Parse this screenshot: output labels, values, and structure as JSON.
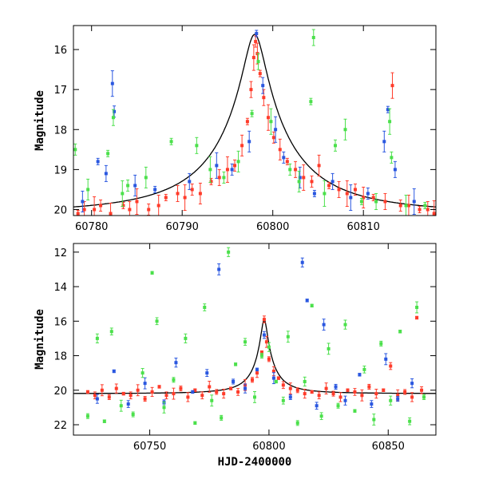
{
  "chart_data": [
    {
      "type": "scatter",
      "title": "",
      "xlabel": "",
      "ylabel": "Magnitude",
      "xlim": [
        60778,
        60818
      ],
      "ylim": [
        20.15,
        15.4
      ],
      "y_inverted": true,
      "xticks": [
        60780,
        60790,
        60800,
        60810
      ],
      "yticks": [
        16,
        17,
        18,
        19,
        20
      ],
      "model_curve": {
        "peak_x": 60798.0,
        "peak_mag": 15.62,
        "baseline_mag": 20.12,
        "timescale_days": 8.5,
        "color": "#000000"
      },
      "series": [
        {
          "color": "#ff3b2a",
          "points": [
            [
              60778.5,
              20.1
            ],
            [
              60779.2,
              20.0
            ],
            [
              60780.3,
              20.0
            ],
            [
              60781.0,
              19.9
            ],
            [
              60782.1,
              20.1
            ],
            [
              60783.5,
              19.9
            ],
            [
              60784.2,
              20.0
            ],
            [
              60785.0,
              19.8
            ],
            [
              60786.3,
              20.0
            ],
            [
              60787.4,
              19.9
            ],
            [
              60788.2,
              19.7
            ],
            [
              60789.5,
              19.6
            ],
            [
              60790.3,
              19.7
            ],
            [
              60791.1,
              19.5
            ],
            [
              60792.0,
              19.6
            ],
            [
              60793.2,
              19.3
            ],
            [
              60794.1,
              19.2
            ],
            [
              60795.0,
              19.0
            ],
            [
              60795.8,
              18.9
            ],
            [
              60796.6,
              18.4
            ],
            [
              60797.2,
              17.8
            ],
            [
              60797.6,
              17.0
            ],
            [
              60797.9,
              16.2
            ],
            [
              60798.1,
              15.8
            ],
            [
              60798.3,
              16.1
            ],
            [
              60798.6,
              16.6
            ],
            [
              60799.0,
              17.2
            ],
            [
              60799.5,
              17.7
            ],
            [
              60800.1,
              18.2
            ],
            [
              60800.8,
              18.5
            ],
            [
              60801.6,
              18.8
            ],
            [
              60802.5,
              19.0
            ],
            [
              60803.4,
              19.2
            ],
            [
              60804.3,
              19.3
            ],
            [
              60805.1,
              18.9
            ],
            [
              60806.2,
              19.4
            ],
            [
              60807.3,
              19.5
            ],
            [
              60808.2,
              19.6
            ],
            [
              60809.1,
              19.5
            ],
            [
              60810.0,
              19.7
            ],
            [
              60811.1,
              19.7
            ],
            [
              60812.4,
              19.8
            ],
            [
              60813.2,
              16.9
            ],
            [
              60814.1,
              19.9
            ],
            [
              60815.0,
              19.9
            ],
            [
              60816.2,
              20.0
            ],
            [
              60817.1,
              20.0
            ],
            [
              60817.8,
              20.1
            ]
          ]
        },
        {
          "color": "#2a57e0",
          "points": [
            [
              60779.0,
              19.8
            ],
            [
              60780.7,
              18.8
            ],
            [
              60781.6,
              19.1
            ],
            [
              60782.3,
              16.85
            ],
            [
              60782.5,
              17.55
            ],
            [
              60784.8,
              19.4
            ],
            [
              60787.0,
              19.5
            ],
            [
              60790.8,
              19.3
            ],
            [
              60793.8,
              18.9
            ],
            [
              60795.5,
              19.0
            ],
            [
              60797.4,
              18.3
            ],
            [
              60798.2,
              15.6
            ],
            [
              60798.9,
              16.9
            ],
            [
              60800.3,
              18.0
            ],
            [
              60801.2,
              18.7
            ],
            [
              60803.0,
              19.2
            ],
            [
              60804.6,
              19.6
            ],
            [
              60806.6,
              19.3
            ],
            [
              60808.6,
              19.7
            ],
            [
              60810.5,
              19.6
            ],
            [
              60812.3,
              18.3
            ],
            [
              60812.7,
              17.5
            ],
            [
              60813.5,
              19.0
            ],
            [
              60815.6,
              19.8
            ]
          ]
        },
        {
          "color": "#4be04b",
          "points": [
            [
              60778.2,
              18.5
            ],
            [
              60779.6,
              19.5
            ],
            [
              60781.8,
              18.6
            ],
            [
              60782.4,
              17.7
            ],
            [
              60783.4,
              19.6
            ],
            [
              60784.0,
              19.4
            ],
            [
              60786.0,
              19.2
            ],
            [
              60788.8,
              18.3
            ],
            [
              60791.6,
              18.4
            ],
            [
              60793.1,
              19.0
            ],
            [
              60794.6,
              19.2
            ],
            [
              60796.2,
              18.8
            ],
            [
              60797.7,
              17.6
            ],
            [
              60798.4,
              16.3
            ],
            [
              60799.8,
              17.8
            ],
            [
              60801.9,
              19.0
            ],
            [
              60802.9,
              19.3
            ],
            [
              60804.2,
              17.3
            ],
            [
              60804.5,
              15.7
            ],
            [
              60805.7,
              19.6
            ],
            [
              60806.9,
              18.4
            ],
            [
              60808.0,
              18.0
            ],
            [
              60809.8,
              19.8
            ],
            [
              60811.4,
              19.8
            ],
            [
              60812.9,
              17.8
            ],
            [
              60813.1,
              18.7
            ],
            [
              60814.7,
              19.9
            ],
            [
              60816.8,
              19.9
            ]
          ]
        }
      ]
    },
    {
      "type": "scatter",
      "title": "",
      "xlabel": "HJD-2400000",
      "ylabel": "Magnitude",
      "xlim": [
        60718,
        60870
      ],
      "ylim": [
        22.6,
        11.5
      ],
      "y_inverted": true,
      "xticks": [
        60750,
        60800,
        60850
      ],
      "yticks": [
        12,
        14,
        16,
        18,
        20,
        22
      ],
      "model_curve": {
        "peak_x": 60798.0,
        "peak_mag": 15.9,
        "baseline_mag": 20.2,
        "timescale_days": 9.0,
        "color": "#000000"
      },
      "series": [
        {
          "color": "#ff3b2a",
          "points": [
            [
              60724,
              20.1
            ],
            [
              60727,
              20.3
            ],
            [
              60730,
              20.0
            ],
            [
              60733,
              20.4
            ],
            [
              60736,
              19.9
            ],
            [
              60739,
              20.2
            ],
            [
              60742,
              20.3
            ],
            [
              60745,
              20.0
            ],
            [
              60748,
              20.5
            ],
            [
              60751,
              20.1
            ],
            [
              60754,
              19.8
            ],
            [
              60757,
              20.3
            ],
            [
              60760,
              20.2
            ],
            [
              60763,
              19.9
            ],
            [
              60766,
              20.4
            ],
            [
              60769,
              20.0
            ],
            [
              60772,
              20.3
            ],
            [
              60775,
              19.8
            ],
            [
              60778,
              20.1
            ],
            [
              60781,
              20.2
            ],
            [
              60784,
              19.9
            ],
            [
              60787,
              20.1
            ],
            [
              60790,
              19.7
            ],
            [
              60793,
              19.4
            ],
            [
              60795,
              19.0
            ],
            [
              60797,
              17.8
            ],
            [
              60798,
              15.9
            ],
            [
              60799,
              17.2
            ],
            [
              60800,
              18.2
            ],
            [
              60802,
              18.9
            ],
            [
              60804,
              19.3
            ],
            [
              60806,
              19.7
            ],
            [
              60809,
              19.9
            ],
            [
              60812,
              20.0
            ],
            [
              60815,
              20.2
            ],
            [
              60818,
              20.1
            ],
            [
              60821,
              20.3
            ],
            [
              60824,
              19.9
            ],
            [
              60827,
              20.2
            ],
            [
              60830,
              20.4
            ],
            [
              60833,
              20.0
            ],
            [
              60836,
              20.1
            ],
            [
              60839,
              20.3
            ],
            [
              60842,
              19.8
            ],
            [
              60845,
              20.2
            ],
            [
              60848,
              20.0
            ],
            [
              60851,
              18.6
            ],
            [
              60854,
              20.3
            ],
            [
              60857,
              20.1
            ],
            [
              60860,
              20.4
            ],
            [
              60862,
              15.8
            ],
            [
              60864,
              20.0
            ]
          ]
        },
        {
          "color": "#2a57e0",
          "points": [
            [
              60728,
              20.5
            ],
            [
              60735,
              18.9
            ],
            [
              60741,
              20.8
            ],
            [
              60748,
              19.6
            ],
            [
              60756,
              20.7
            ],
            [
              60761,
              18.4
            ],
            [
              60768,
              20.1
            ],
            [
              60774,
              19.0
            ],
            [
              60779,
              13.0
            ],
            [
              60785,
              19.5
            ],
            [
              60790,
              19.9
            ],
            [
              60795,
              18.8
            ],
            [
              60798,
              16.8
            ],
            [
              60802,
              19.3
            ],
            [
              60809,
              20.4
            ],
            [
              60814,
              12.6
            ],
            [
              60816,
              14.8
            ],
            [
              60820,
              20.9
            ],
            [
              60823,
              16.2
            ],
            [
              60828,
              19.8
            ],
            [
              60832,
              20.6
            ],
            [
              60838,
              19.1
            ],
            [
              60843,
              20.8
            ],
            [
              60849,
              18.2
            ],
            [
              60854,
              20.5
            ],
            [
              60860,
              19.6
            ]
          ]
        },
        {
          "color": "#4be04b",
          "points": [
            [
              60724,
              21.5
            ],
            [
              60728,
              17.0
            ],
            [
              60731,
              21.8
            ],
            [
              60734,
              16.6
            ],
            [
              60738,
              20.9
            ],
            [
              60743,
              21.4
            ],
            [
              60747,
              19.0
            ],
            [
              60751,
              13.2
            ],
            [
              60753,
              16.0
            ],
            [
              60756,
              21.0
            ],
            [
              60760,
              19.4
            ],
            [
              60765,
              17.0
            ],
            [
              60769,
              21.9
            ],
            [
              60773,
              15.2
            ],
            [
              60776,
              20.6
            ],
            [
              60780,
              21.6
            ],
            [
              60783,
              12.0
            ],
            [
              60786,
              18.5
            ],
            [
              60790,
              17.2
            ],
            [
              60794,
              20.4
            ],
            [
              60797,
              18.0
            ],
            [
              60800,
              17.5
            ],
            [
              60803,
              19.5
            ],
            [
              60806,
              20.6
            ],
            [
              60808,
              16.9
            ],
            [
              60812,
              21.9
            ],
            [
              60815,
              19.5
            ],
            [
              60818,
              15.1
            ],
            [
              60822,
              21.5
            ],
            [
              60825,
              17.6
            ],
            [
              60829,
              20.9
            ],
            [
              60832,
              16.2
            ],
            [
              60836,
              21.2
            ],
            [
              60840,
              18.8
            ],
            [
              60844,
              21.7
            ],
            [
              60847,
              17.3
            ],
            [
              60851,
              20.6
            ],
            [
              60855,
              16.6
            ],
            [
              60859,
              21.8
            ],
            [
              60862,
              15.2
            ],
            [
              60865,
              20.4
            ]
          ]
        }
      ]
    }
  ]
}
